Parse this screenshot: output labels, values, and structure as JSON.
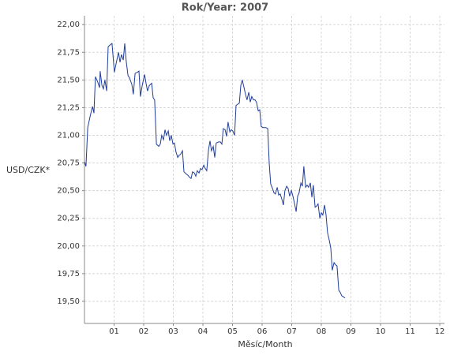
{
  "chart_data": {
    "type": "line",
    "title": "Rok/Year: 2007",
    "xlabel": "Měsíc/Month",
    "ylabel": "USD/CZK*",
    "grid": true,
    "xlim": [
      0,
      12.16
    ],
    "ylim": [
      19.3,
      22.08
    ],
    "xticks": [
      {
        "value": 1,
        "label": "01"
      },
      {
        "value": 2,
        "label": "02"
      },
      {
        "value": 3,
        "label": "03"
      },
      {
        "value": 4,
        "label": "04"
      },
      {
        "value": 5,
        "label": "05"
      },
      {
        "value": 6,
        "label": "06"
      },
      {
        "value": 7,
        "label": "07"
      },
      {
        "value": 8,
        "label": "08"
      },
      {
        "value": 9,
        "label": "09"
      },
      {
        "value": 10,
        "label": "10"
      },
      {
        "value": 11,
        "label": "11"
      },
      {
        "value": 12,
        "label": "12"
      }
    ],
    "yticks": [
      {
        "value": 19.5,
        "label": "19,50"
      },
      {
        "value": 19.75,
        "label": "19,75"
      },
      {
        "value": 20,
        "label": "20,00"
      },
      {
        "value": 20.25,
        "label": "20,25"
      },
      {
        "value": 20.5,
        "label": "20,50"
      },
      {
        "value": 20.75,
        "label": "20,75"
      },
      {
        "value": 21,
        "label": "21,00"
      },
      {
        "value": 21.25,
        "label": "21,25"
      },
      {
        "value": 21.5,
        "label": "21,50"
      },
      {
        "value": 21.75,
        "label": "21,75"
      },
      {
        "value": 22,
        "label": "22,00"
      }
    ],
    "color": "#1f3d99",
    "x": [
      0,
      0.05,
      0.11,
      0.19,
      0.27,
      0.32,
      0.37,
      0.45,
      0.51,
      0.53,
      0.59,
      0.64,
      0.69,
      0.75,
      0.8,
      0.88,
      0.93,
      1.01,
      1.07,
      1.15,
      1.2,
      1.25,
      1.31,
      1.36,
      1.41,
      1.47,
      1.52,
      1.6,
      1.65,
      1.71,
      1.79,
      1.84,
      1.89,
      1.95,
      2.03,
      2.08,
      2.13,
      2.19,
      2.27,
      2.32,
      2.37,
      2.43,
      2.51,
      2.56,
      2.61,
      2.67,
      2.72,
      2.77,
      2.83,
      2.88,
      2.93,
      2.99,
      3.04,
      3.09,
      3.15,
      3.2,
      3.25,
      3.31,
      3.36,
      3.44,
      3.49,
      3.55,
      3.6,
      3.65,
      3.71,
      3.76,
      3.81,
      3.87,
      3.92,
      3.97,
      4.03,
      4.08,
      4.13,
      4.19,
      4.24,
      4.29,
      4.35,
      4.4,
      4.45,
      4.53,
      4.59,
      4.64,
      4.69,
      4.75,
      4.8,
      4.85,
      4.91,
      4.96,
      5.01,
      5.07,
      5.12,
      5.17,
      5.23,
      5.28,
      5.33,
      5.39,
      5.44,
      5.49,
      5.55,
      5.6,
      5.65,
      5.71,
      5.76,
      5.81,
      5.87,
      5.92,
      5.97,
      6.03,
      6.08,
      6.13,
      6.19,
      6.24,
      6.29,
      6.35,
      6.4,
      6.45,
      6.51,
      6.56,
      6.61,
      6.67,
      6.72,
      6.77,
      6.83,
      6.88,
      6.93,
      6.99,
      7.04,
      7.09,
      7.15,
      7.2,
      7.25,
      7.31,
      7.36,
      7.41,
      7.47,
      7.52,
      7.57,
      7.63,
      7.68,
      7.73,
      7.79,
      7.84,
      7.89,
      7.95,
      8.0,
      8.05,
      8.11,
      8.16,
      8.21,
      8.27,
      8.32,
      8.37,
      8.43,
      8.48,
      8.53,
      8.59,
      8.64,
      8.69,
      8.75,
      8.8
    ],
    "values": [
      20.76,
      20.72,
      21.07,
      21.17,
      21.26,
      21.2,
      21.53,
      21.48,
      21.43,
      21.58,
      21.45,
      21.42,
      21.5,
      21.4,
      21.8,
      21.82,
      21.83,
      21.57,
      21.65,
      21.75,
      21.66,
      21.73,
      21.68,
      21.83,
      21.67,
      21.54,
      21.52,
      21.46,
      21.37,
      21.56,
      21.57,
      21.58,
      21.35,
      21.45,
      21.55,
      21.47,
      21.4,
      21.45,
      21.47,
      21.34,
      21.32,
      20.92,
      20.9,
      20.92,
      21.0,
      20.96,
      21.05,
      21.0,
      21.04,
      20.95,
      21.0,
      20.92,
      20.93,
      20.85,
      20.8,
      20.82,
      20.83,
      20.86,
      20.67,
      20.65,
      20.64,
      20.62,
      20.61,
      20.67,
      20.66,
      20.63,
      20.68,
      20.66,
      20.7,
      20.69,
      20.73,
      20.7,
      20.68,
      20.87,
      20.95,
      20.86,
      20.9,
      20.8,
      20.93,
      20.94,
      20.94,
      20.92,
      21.06,
      21.05,
      20.99,
      21.12,
      21.03,
      21.05,
      21.04,
      21.0,
      21.27,
      21.28,
      21.29,
      21.45,
      21.5,
      21.43,
      21.37,
      21.32,
      21.39,
      21.3,
      21.35,
      21.32,
      21.32,
      21.3,
      21.22,
      21.23,
      21.08,
      21.07,
      21.07,
      21.07,
      21.06,
      20.75,
      20.56,
      20.52,
      20.48,
      20.47,
      20.53,
      20.46,
      20.47,
      20.42,
      20.37,
      20.5,
      20.54,
      20.52,
      20.45,
      20.5,
      20.45,
      20.39,
      20.31,
      20.45,
      20.48,
      20.57,
      20.54,
      20.72,
      20.53,
      20.55,
      20.53,
      20.57,
      20.44,
      20.55,
      20.35,
      20.36,
      20.38,
      20.25,
      20.3,
      20.28,
      20.37,
      20.28,
      20.12,
      20.05,
      19.98,
      19.78,
      19.85,
      19.83,
      19.82,
      19.6,
      19.58,
      19.55,
      19.54,
      19.53
    ]
  }
}
